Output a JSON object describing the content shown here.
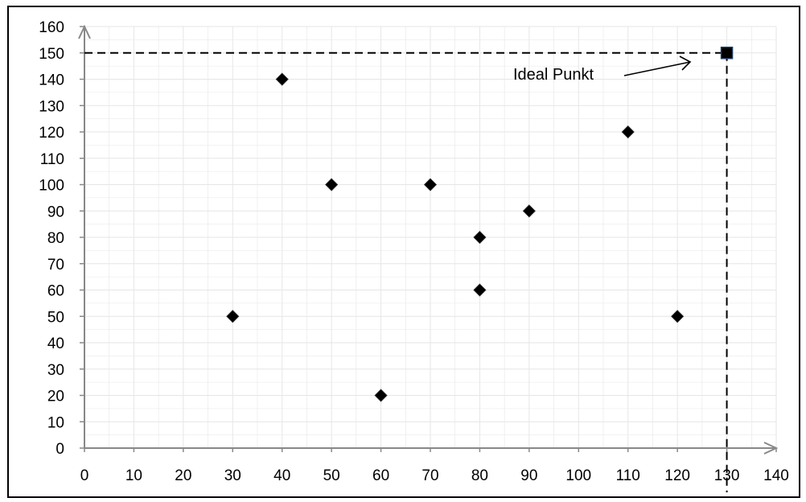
{
  "chart_data": {
    "type": "scatter",
    "title": "",
    "xlabel": "",
    "ylabel": "",
    "xlim": [
      0,
      140
    ],
    "ylim": [
      0,
      160
    ],
    "xticks": [
      "0",
      "10",
      "20",
      "30",
      "40",
      "50",
      "60",
      "70",
      "80",
      "90",
      "100",
      "110",
      "120",
      "130",
      "140"
    ],
    "yticks": [
      "0",
      "10",
      "20",
      "30",
      "40",
      "50",
      "60",
      "70",
      "80",
      "90",
      "100",
      "110",
      "120",
      "130",
      "140",
      "150",
      "160"
    ],
    "grid": true,
    "series": [
      {
        "marker": "diamond",
        "color": "#000000",
        "points": [
          {
            "x": 30,
            "y": 50
          },
          {
            "x": 40,
            "y": 140
          },
          {
            "x": 50,
            "y": 100
          },
          {
            "x": 60,
            "y": 20
          },
          {
            "x": 70,
            "y": 100
          },
          {
            "x": 80,
            "y": 80
          },
          {
            "x": 80,
            "y": 60
          },
          {
            "x": 90,
            "y": 90
          },
          {
            "x": 110,
            "y": 120
          },
          {
            "x": 120,
            "y": 50
          }
        ]
      }
    ],
    "ideal_point": {
      "x": 130,
      "y": 150,
      "marker": "square",
      "fill": "#000000",
      "stroke": "#1f3a60"
    },
    "annotation": {
      "text": "Ideal Punkt"
    }
  },
  "colors": {
    "grid": "#e6e6e6",
    "axis": "#888888",
    "marker": "#000000"
  }
}
